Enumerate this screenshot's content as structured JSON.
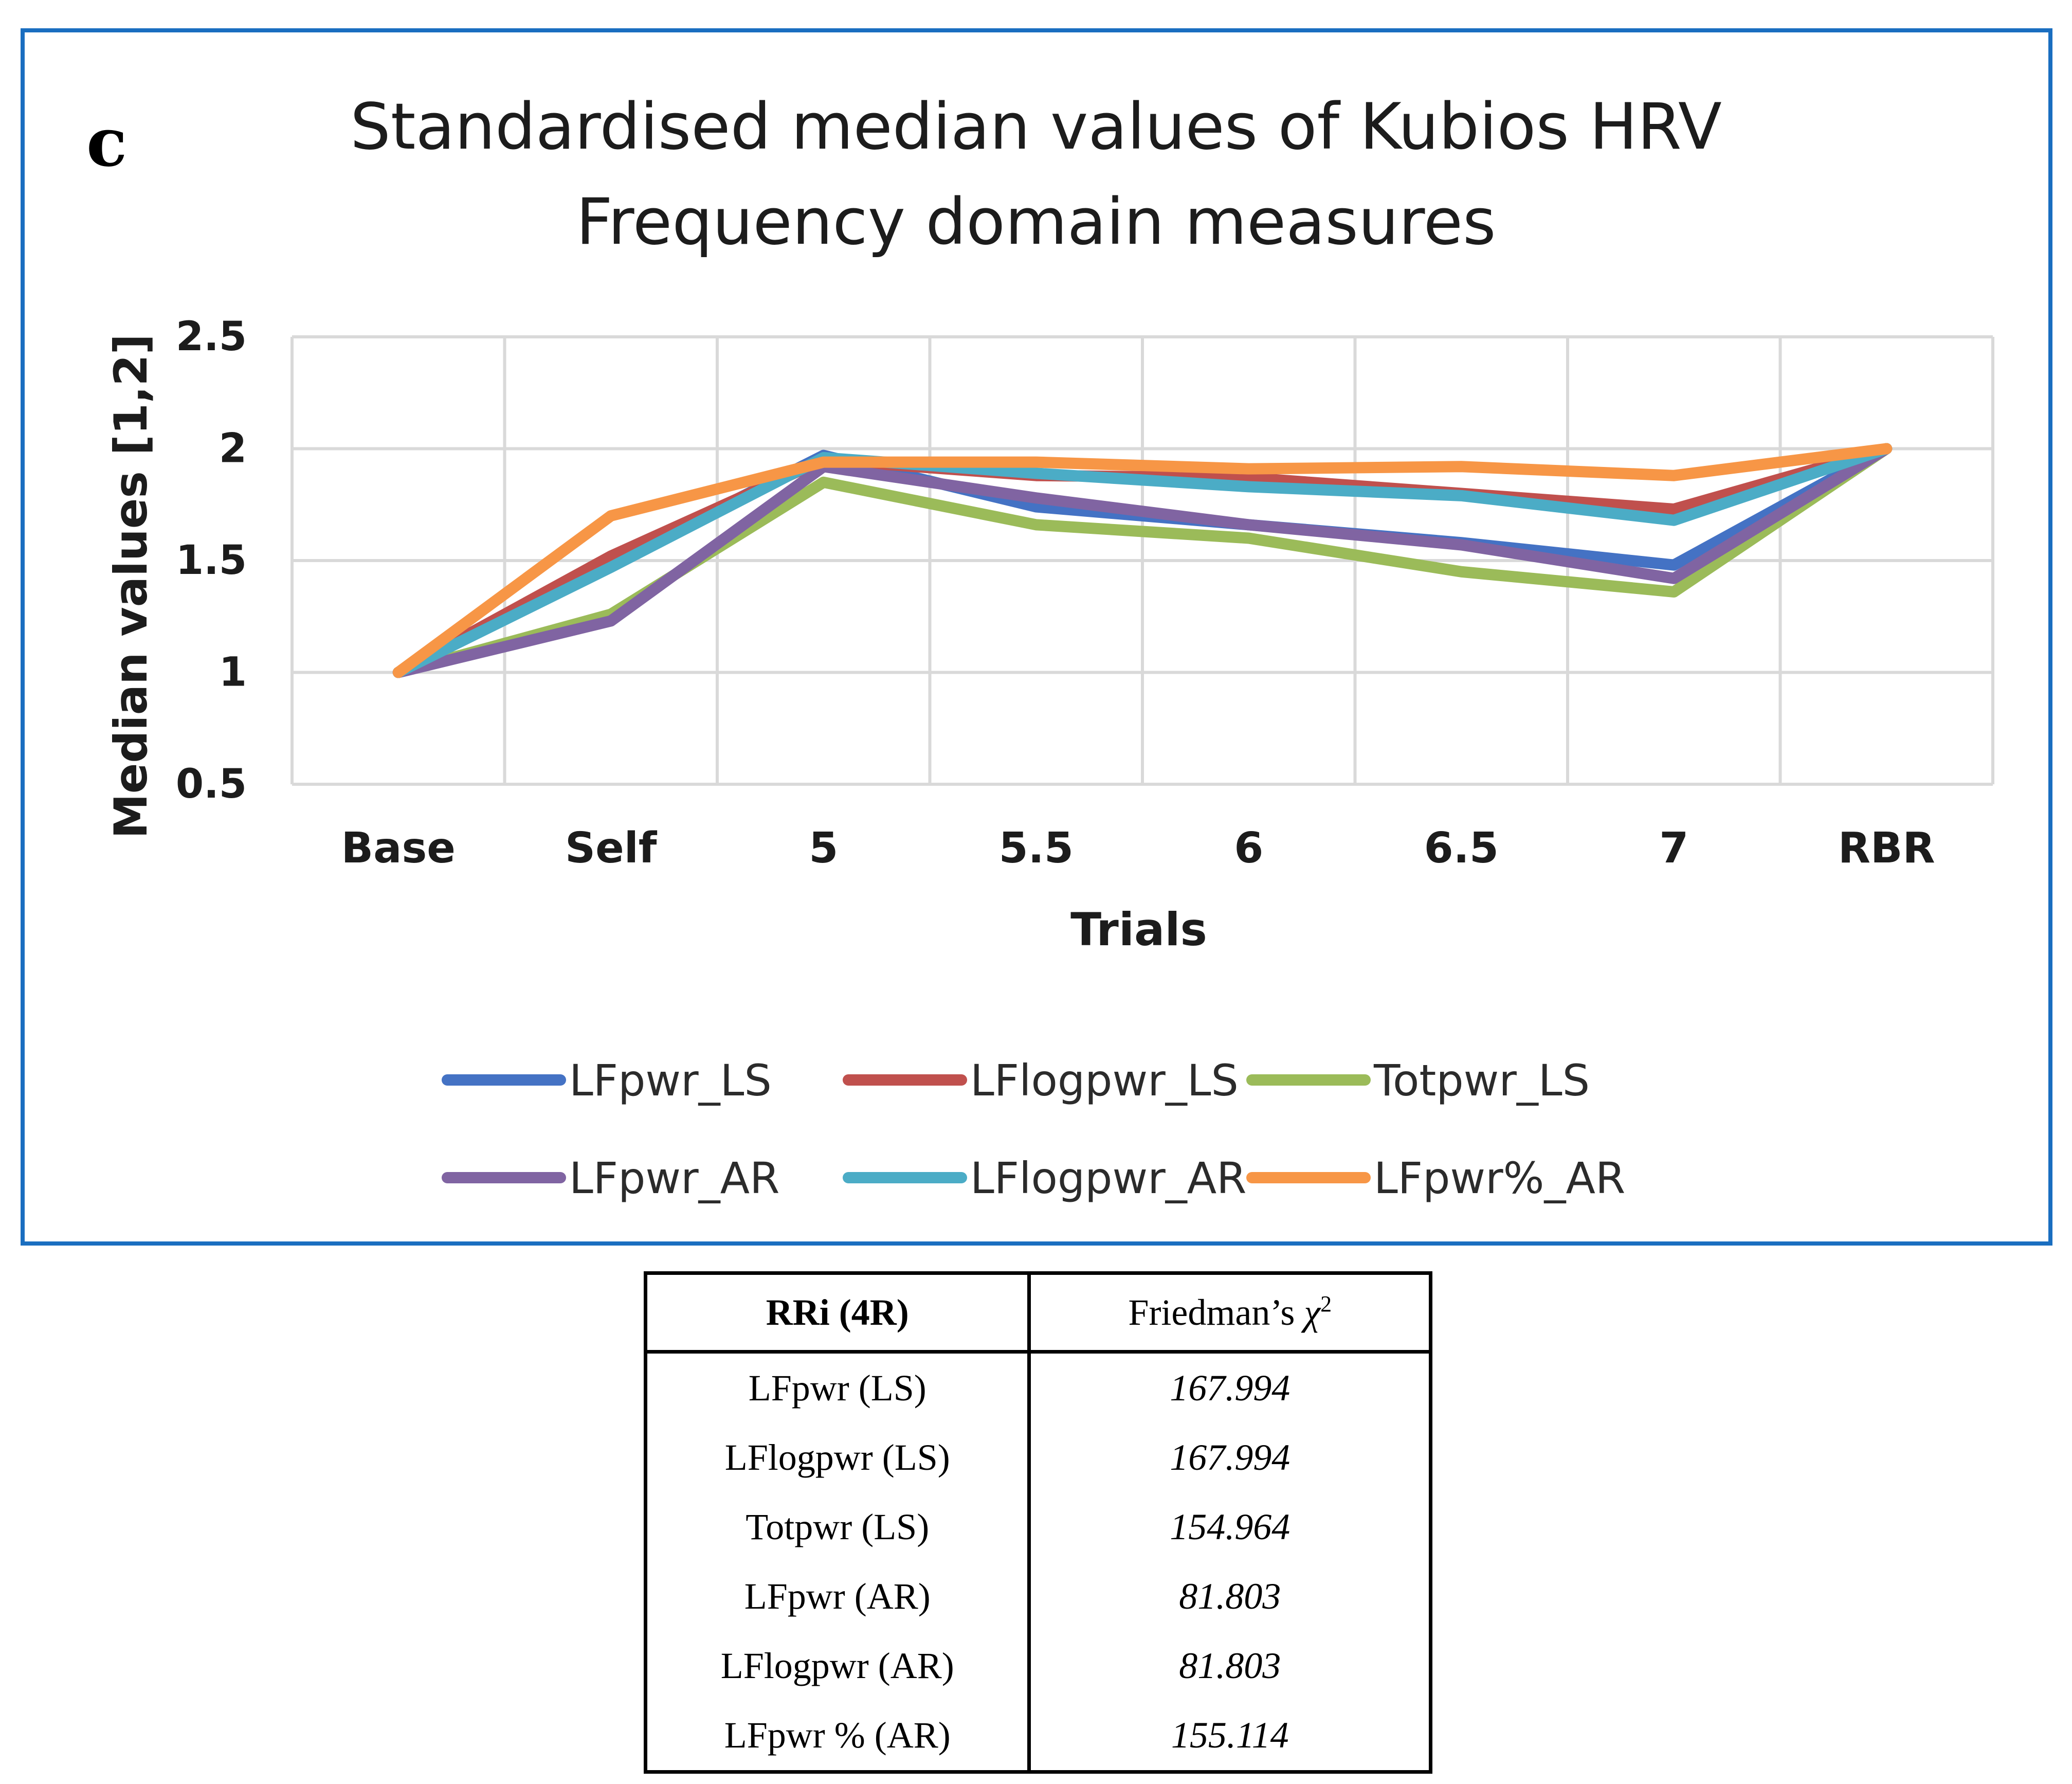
{
  "panel_label": "c",
  "chart_data": {
    "type": "line",
    "title": "Standardised median values of Kubios HRV Frequency domain measures",
    "title_lines": [
      "Standardised median values of Kubios HRV",
      "Frequency domain measures"
    ],
    "xlabel": "Trials",
    "ylabel": "Median values [1,2]",
    "categories": [
      "Base",
      "Self",
      "5",
      "5.5",
      "6",
      "6.5",
      "7",
      "RBR"
    ],
    "y_ticks": [
      2.5,
      2,
      1.5,
      1,
      0.5
    ],
    "y_tick_labels": [
      "2.5",
      "2",
      "1.5",
      "1",
      "0.5"
    ],
    "ylim": [
      0.5,
      2.5
    ],
    "grid": true,
    "legend_position": "bottom",
    "series": [
      {
        "name": "LFpwr_LS",
        "color": "#4472c4",
        "values": [
          1.0,
          1.49,
          1.97,
          1.74,
          1.66,
          1.58,
          1.48,
          2.0
        ]
      },
      {
        "name": "LFlogpwr_LS",
        "color": "#c0504d",
        "values": [
          1.0,
          1.52,
          1.95,
          1.88,
          1.87,
          1.8,
          1.73,
          2.0
        ]
      },
      {
        "name": "Totpwr_LS",
        "color": "#9bbb59",
        "values": [
          1.0,
          1.26,
          1.85,
          1.66,
          1.6,
          1.45,
          1.36,
          2.0
        ]
      },
      {
        "name": "LFpwr_AR",
        "color": "#8064a2",
        "values": [
          1.0,
          1.23,
          1.92,
          1.78,
          1.66,
          1.57,
          1.42,
          2.0
        ]
      },
      {
        "name": "LFlogpwr_AR",
        "color": "#4bacc6",
        "values": [
          1.0,
          1.47,
          1.96,
          1.89,
          1.83,
          1.79,
          1.68,
          2.0
        ]
      },
      {
        "name": "LFpwr%_AR",
        "color": "#f79646",
        "values": [
          1.0,
          1.7,
          1.94,
          1.94,
          1.91,
          1.92,
          1.88,
          2.0
        ]
      }
    ]
  },
  "table": {
    "header": {
      "col1": "RRi (4R)",
      "col2_prefix": "Friedman’s ",
      "col2_symbol": "χ",
      "col2_sup": "2"
    },
    "rows": [
      {
        "measure": "LFpwr (LS)",
        "chi2": "167.994"
      },
      {
        "measure": "LFlogpwr (LS)",
        "chi2": "167.994"
      },
      {
        "measure": "Totpwr (LS)",
        "chi2": "154.964"
      },
      {
        "measure": "LFpwr (AR)",
        "chi2": "81.803"
      },
      {
        "measure": "LFlogpwr (AR)",
        "chi2": "81.803"
      },
      {
        "measure": "LFpwr % (AR)",
        "chi2": "155.114"
      }
    ]
  }
}
